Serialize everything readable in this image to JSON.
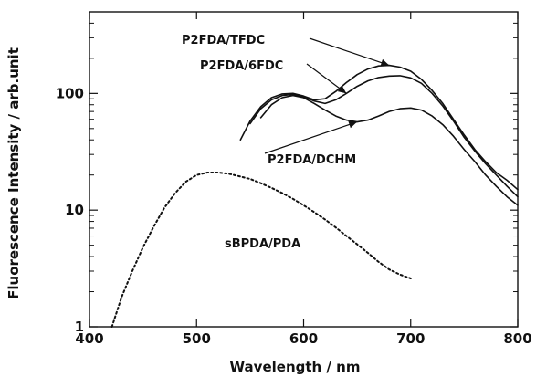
{
  "chart_data": {
    "type": "line",
    "xlabel": "Wavelength / nm",
    "ylabel": "Fluorescence Intensity / arb.unit",
    "xlim": [
      400,
      800
    ],
    "ylim": [
      1,
      500
    ],
    "y_scale": "log",
    "grid": false,
    "legend": "none",
    "x_ticks": [
      400,
      500,
      600,
      700,
      800
    ],
    "y_ticks": [
      {
        "value": 1,
        "label": "1"
      },
      {
        "value": 10,
        "label": "10"
      },
      {
        "value": 100,
        "label": "100"
      }
    ],
    "series": [
      {
        "name": "P2FDA/TFDC",
        "style": "solid",
        "x": [
          541,
          550,
          560,
          570,
          580,
          590,
          600,
          610,
          620,
          630,
          640,
          650,
          660,
          670,
          680,
          690,
          700,
          710,
          720,
          730,
          740,
          750,
          760,
          770,
          780,
          790,
          800
        ],
        "y": [
          40,
          58,
          77,
          92,
          99,
          100,
          95,
          88,
          90,
          104,
          124,
          145,
          162,
          172,
          174,
          168,
          155,
          132,
          106,
          82,
          60,
          44,
          33,
          26,
          21,
          18,
          15
        ]
      },
      {
        "name": "P2FDA/6FDC",
        "style": "solid",
        "x": [
          550,
          560,
          570,
          580,
          590,
          600,
          610,
          620,
          630,
          640,
          650,
          660,
          670,
          680,
          690,
          700,
          710,
          720,
          730,
          740,
          750,
          760,
          770,
          780,
          790,
          800
        ],
        "y": [
          55,
          74,
          88,
          96,
          98,
          94,
          86,
          82,
          88,
          100,
          115,
          128,
          137,
          141,
          142,
          136,
          122,
          100,
          78,
          58,
          42,
          32,
          25,
          20,
          16,
          13
        ]
      },
      {
        "name": "P2FDA/DCHM",
        "style": "solid",
        "x": [
          560,
          570,
          580,
          590,
          600,
          610,
          620,
          630,
          640,
          650,
          660,
          670,
          680,
          690,
          700,
          710,
          720,
          730,
          740,
          750,
          760,
          770,
          780,
          790,
          800
        ],
        "y": [
          62,
          80,
          92,
          96,
          92,
          82,
          72,
          64,
          59,
          57,
          59,
          64,
          70,
          74,
          75,
          72,
          64,
          54,
          43,
          33,
          26,
          20,
          16,
          13,
          11
        ]
      },
      {
        "name": "sBPDA/PDA",
        "style": "dotted",
        "x": [
          421,
          430,
          440,
          450,
          460,
          470,
          480,
          490,
          500,
          510,
          520,
          530,
          540,
          550,
          560,
          570,
          580,
          590,
          600,
          610,
          620,
          630,
          640,
          650,
          660,
          670,
          680,
          690,
          700
        ],
        "y": [
          1.0,
          1.8,
          3.0,
          4.8,
          7.2,
          10.5,
          14.0,
          17.5,
          20.0,
          21.0,
          21.0,
          20.5,
          19.5,
          18.5,
          17.0,
          15.5,
          14.0,
          12.5,
          11.0,
          9.6,
          8.3,
          7.1,
          6.0,
          5.1,
          4.3,
          3.6,
          3.1,
          2.8,
          2.6
        ]
      }
    ],
    "annotations": [
      {
        "text": "P2FDA/TFDC"
      },
      {
        "text": "P2FDA/6FDC"
      },
      {
        "text": "P2FDA/DCHM"
      },
      {
        "text": "sBPDA/PDA"
      }
    ]
  }
}
